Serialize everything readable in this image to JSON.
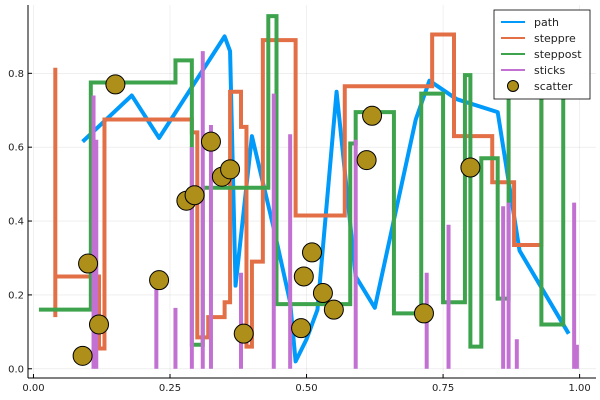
{
  "chart_data": {
    "type": "line",
    "title": "",
    "xlabel": "",
    "ylabel": "",
    "xlim": [
      -0.01,
      1.03
    ],
    "ylim": [
      -0.025,
      0.985
    ],
    "xticks": [
      0.0,
      0.25,
      0.5,
      0.75,
      1.0
    ],
    "xtick_labels": [
      "0.00",
      "0.25",
      "0.50",
      "0.75",
      "1.00"
    ],
    "yticks": [
      0.0,
      0.2,
      0.4,
      0.6,
      0.8
    ],
    "ytick_labels": [
      "0.0",
      "0.2",
      "0.4",
      "0.6",
      "0.8"
    ],
    "grid": true,
    "legend_position": "top-right",
    "series": [
      {
        "name": "path",
        "kind": "line",
        "color": "#009AFA",
        "x": [
          0.09,
          0.18,
          0.23,
          0.35,
          0.36,
          0.37,
          0.4,
          0.44,
          0.47,
          0.48,
          0.5,
          0.52,
          0.555,
          0.59,
          0.625,
          0.7,
          0.725,
          0.775,
          0.85,
          0.89,
          0.98
        ],
        "y": [
          0.615,
          0.74,
          0.625,
          0.9,
          0.86,
          0.225,
          0.63,
          0.38,
          0.18,
          0.02,
          0.08,
          0.16,
          0.75,
          0.25,
          0.165,
          0.675,
          0.78,
          0.73,
          0.695,
          0.32,
          0.095
        ]
      },
      {
        "name": "steppre",
        "kind": "steppre",
        "color": "#E26F46",
        "x": [
          0.04,
          0.04,
          0.12,
          0.13,
          0.29,
          0.3,
          0.32,
          0.35,
          0.36,
          0.38,
          0.39,
          0.4,
          0.42,
          0.48,
          0.57,
          0.73,
          0.77,
          0.84,
          0.88,
          0.93,
          0.95
        ],
        "y": [
          0.14,
          0.815,
          0.25,
          0.055,
          0.675,
          0.64,
          0.085,
          0.14,
          0.18,
          0.75,
          0.655,
          0.06,
          0.29,
          0.89,
          0.415,
          0.765,
          0.905,
          0.63,
          0.505,
          0.335,
          0.86
        ]
      },
      {
        "name": "steppost",
        "kind": "steppost",
        "color": "#3DA44D",
        "x": [
          0.01,
          0.105,
          0.26,
          0.29,
          0.31,
          0.43,
          0.445,
          0.58,
          0.59,
          0.66,
          0.71,
          0.75,
          0.79,
          0.8,
          0.82,
          0.85,
          0.87,
          0.93,
          0.97
        ],
        "y": [
          0.16,
          0.775,
          0.835,
          0.065,
          0.49,
          0.955,
          0.175,
          0.61,
          0.695,
          0.15,
          0.745,
          0.18,
          0.795,
          0.06,
          0.57,
          0.19,
          0.85,
          0.12,
          0.85
        ]
      },
      {
        "name": "sticks",
        "kind": "sticks",
        "color": "#C271D2",
        "x": [
          0.11,
          0.115,
          0.225,
          0.26,
          0.29,
          0.31,
          0.325,
          0.38,
          0.44,
          0.47,
          0.59,
          0.72,
          0.76,
          0.86,
          0.87,
          0.885,
          0.99,
          0.995
        ],
        "y": [
          0.74,
          0.62,
          0.215,
          0.165,
          0.6,
          0.86,
          0.66,
          0.26,
          0.745,
          0.635,
          0.62,
          0.26,
          0.39,
          0.44,
          0.45,
          0.08,
          0.45,
          0.065
        ]
      },
      {
        "name": "scatter",
        "kind": "scatter",
        "color": "#AD8F19",
        "x": [
          0.09,
          0.1,
          0.12,
          0.15,
          0.23,
          0.28,
          0.295,
          0.325,
          0.345,
          0.36,
          0.385,
          0.49,
          0.495,
          0.51,
          0.53,
          0.55,
          0.61,
          0.62,
          0.715,
          0.8
        ],
        "y": [
          0.035,
          0.285,
          0.12,
          0.77,
          0.24,
          0.455,
          0.47,
          0.615,
          0.52,
          0.54,
          0.095,
          0.11,
          0.25,
          0.315,
          0.205,
          0.16,
          0.565,
          0.685,
          0.15,
          0.545
        ]
      }
    ]
  }
}
